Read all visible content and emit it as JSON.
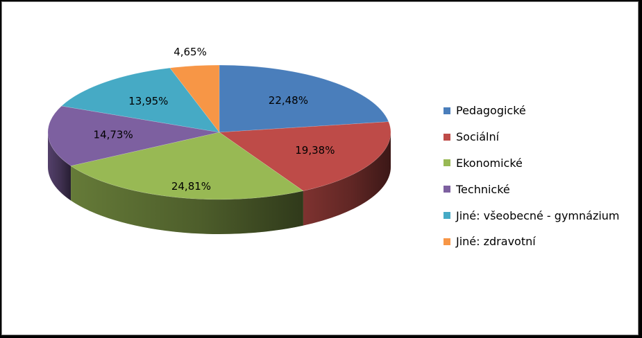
{
  "chart_data": {
    "type": "pie",
    "style": "3d",
    "legend": "right",
    "categories": [
      "Pedagogické",
      "Sociální",
      "Ekonomické",
      "Technické",
      "Jiné: všeobecné - gymnázium",
      "Jiné: zdravotní"
    ],
    "values": [
      22.48,
      19.38,
      24.81,
      14.73,
      13.95,
      4.65
    ],
    "labels": [
      "22,48%",
      "19,38%",
      "24,81%",
      "14,73%",
      "13,95%",
      "4,65%"
    ],
    "colors": [
      "#4a7ebb",
      "#be4b48",
      "#98b954",
      "#7d60a0",
      "#46aac5",
      "#f79646"
    ]
  }
}
